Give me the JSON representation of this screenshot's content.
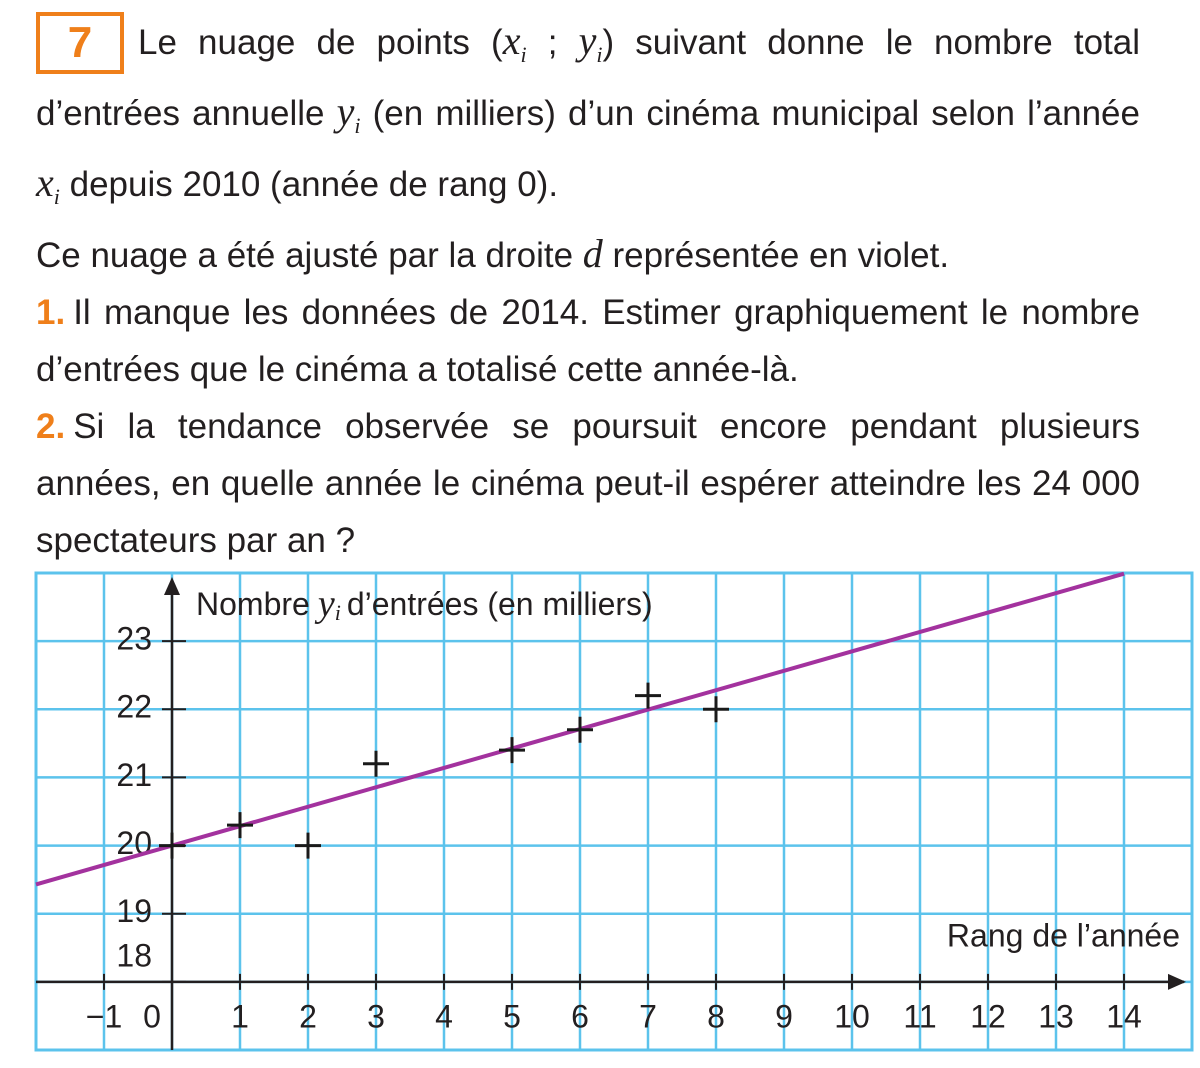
{
  "exercise": {
    "number": "7",
    "intro": [
      "Le nuage de points (",
      {
        "var": "x",
        "sub": "i"
      },
      " ; ",
      {
        "var": "y",
        "sub": "i"
      },
      ") suivant donne le nombre total d’entrées annuelle ",
      {
        "var": "y",
        "sub": "i"
      },
      " (en milliers) d’un cinéma municipal selon l’année ",
      {
        "var": "x",
        "sub": "i"
      },
      " depuis 2010 (année de rang 0)."
    ],
    "fit_note": [
      "Ce nuage a été ajusté par la droite ",
      {
        "var": "d"
      },
      " représentée en violet."
    ],
    "questions": [
      {
        "number": "1.",
        "text": "Il manque les données de 2014. Estimer graphiquement le nombre d’entrées que le cinéma a totalisé cette année-là."
      },
      {
        "number": "2.",
        "text": "Si la tendance observée se poursuit encore pendant plusieurs années, en quelle année le cinéma peut-il espérer atteindre les 24 000 spectateurs par an ?"
      }
    ]
  },
  "chart_data": {
    "type": "scatter",
    "y_label": {
      "before": "Nombre",
      "var": "y",
      "sub": "i",
      "after": "d’entrées (en milliers)"
    },
    "x_label": "Rang de l’année",
    "points": {
      "x": [
        0,
        1,
        2,
        3,
        5,
        6,
        7,
        8
      ],
      "values": [
        20,
        20.3,
        20,
        21.2,
        21.4,
        21.7,
        22.2,
        22
      ],
      "color": "#1a1a1a"
    },
    "fit_line": {
      "x": [
        -2,
        14
      ],
      "values": [
        19.43,
        23.99
      ],
      "color": "#a3329e"
    },
    "xlim": [
      -2,
      15
    ],
    "ylim": [
      17,
      24
    ],
    "xticks": [
      {
        "value": -1,
        "label": "−1"
      },
      0,
      1,
      2,
      3,
      4,
      5,
      6,
      7,
      8,
      9,
      10,
      11,
      12,
      13,
      14
    ],
    "yticks": [
      18,
      19,
      20,
      21,
      22,
      23
    ],
    "grid": true,
    "grid_color": "#5cc3ec"
  }
}
